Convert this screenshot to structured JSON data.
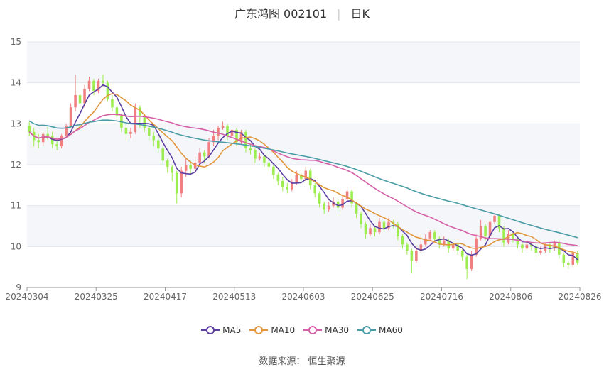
{
  "title": {
    "name": "广东鸿图 002101",
    "period": "日K"
  },
  "source_text": "数据来源： 恒生聚源",
  "chart_data": {
    "type": "candlestick",
    "y_ticks": [
      "9",
      "10",
      "11",
      "12",
      "13",
      "14",
      "15"
    ],
    "ylim": [
      9,
      15
    ],
    "x_tick_labels": [
      "20240304",
      "20240325",
      "20240417",
      "20240513",
      "20240603",
      "20240625",
      "20240716",
      "20240806",
      "20240826"
    ],
    "grid": "horizontal bands",
    "legend_position": "bottom",
    "colors": {
      "up": "#f07f80",
      "down": "#9ded50"
    },
    "candles": [
      [
        12.95,
        12.8,
        13.05,
        12.7
      ],
      [
        12.8,
        12.6,
        12.9,
        12.45
      ],
      [
        12.6,
        12.55,
        12.75,
        12.4
      ],
      [
        12.55,
        12.75,
        12.8,
        12.45
      ],
      [
        12.75,
        12.7,
        12.95,
        12.6
      ],
      [
        12.7,
        12.5,
        12.8,
        12.4
      ],
      [
        12.5,
        12.45,
        12.6,
        12.35
      ],
      [
        12.45,
        12.7,
        12.75,
        12.4
      ],
      [
        12.7,
        12.95,
        13.0,
        12.65
      ],
      [
        12.95,
        13.4,
        13.5,
        12.9
      ],
      [
        13.4,
        13.7,
        14.2,
        13.3
      ],
      [
        13.7,
        13.5,
        13.8,
        13.4
      ],
      [
        13.5,
        13.85,
        13.95,
        13.4
      ],
      [
        13.85,
        14.05,
        14.15,
        13.8
      ],
      [
        14.05,
        13.8,
        14.1,
        13.7
      ],
      [
        13.8,
        14.05,
        14.1,
        13.75
      ],
      [
        14.05,
        14.0,
        14.2,
        13.9
      ],
      [
        14.0,
        13.6,
        14.05,
        13.55
      ],
      [
        13.6,
        13.4,
        13.7,
        13.3
      ],
      [
        13.4,
        13.2,
        13.45,
        13.1
      ],
      [
        13.2,
        12.9,
        13.25,
        12.8
      ],
      [
        12.9,
        12.75,
        13.0,
        12.6
      ],
      [
        12.75,
        12.8,
        12.9,
        12.65
      ],
      [
        12.8,
        13.4,
        13.5,
        12.75
      ],
      [
        13.4,
        13.2,
        13.45,
        12.9
      ],
      [
        13.2,
        12.9,
        13.25,
        12.8
      ],
      [
        12.9,
        12.7,
        12.95,
        12.6
      ],
      [
        12.7,
        12.6,
        12.8,
        12.45
      ],
      [
        12.6,
        12.4,
        12.7,
        12.3
      ],
      [
        12.4,
        12.1,
        12.45,
        12.0
      ],
      [
        12.1,
        11.95,
        12.15,
        11.8
      ],
      [
        11.95,
        11.8,
        12.0,
        11.6
      ],
      [
        11.8,
        11.3,
        11.85,
        11.05
      ],
      [
        11.3,
        11.85,
        11.95,
        11.2
      ],
      [
        11.85,
        12.0,
        12.15,
        11.7
      ],
      [
        12.0,
        11.9,
        12.1,
        11.75
      ],
      [
        11.9,
        12.05,
        12.2,
        11.8
      ],
      [
        12.05,
        12.3,
        12.4,
        11.95
      ],
      [
        12.3,
        12.2,
        12.35,
        12.05
      ],
      [
        12.2,
        12.55,
        12.65,
        12.15
      ],
      [
        12.55,
        12.7,
        12.85,
        12.45
      ],
      [
        12.7,
        12.9,
        12.95,
        12.6
      ],
      [
        12.9,
        12.95,
        13.05,
        12.85
      ],
      [
        12.95,
        12.7,
        13.0,
        12.6
      ],
      [
        12.7,
        12.85,
        12.95,
        12.6
      ],
      [
        12.85,
        12.55,
        12.9,
        12.45
      ],
      [
        12.55,
        12.8,
        12.85,
        12.5
      ],
      [
        12.8,
        12.4,
        12.85,
        12.3
      ],
      [
        12.4,
        12.35,
        12.5,
        12.25
      ],
      [
        12.35,
        12.15,
        12.4,
        12.05
      ],
      [
        12.15,
        12.2,
        12.3,
        12.1
      ],
      [
        12.2,
        12.05,
        12.25,
        11.95
      ],
      [
        12.05,
        11.95,
        12.1,
        11.85
      ],
      [
        11.95,
        11.75,
        12.0,
        11.65
      ],
      [
        11.75,
        11.6,
        11.8,
        11.5
      ],
      [
        11.6,
        11.45,
        11.7,
        11.35
      ],
      [
        11.45,
        11.4,
        11.55,
        11.3
      ],
      [
        11.4,
        11.55,
        11.65,
        11.35
      ],
      [
        11.55,
        11.75,
        11.85,
        11.5
      ],
      [
        11.75,
        11.65,
        11.8,
        11.55
      ],
      [
        11.65,
        11.85,
        11.95,
        11.6
      ],
      [
        11.85,
        11.5,
        11.9,
        11.4
      ],
      [
        11.5,
        11.3,
        11.55,
        11.2
      ],
      [
        11.3,
        11.05,
        11.35,
        10.95
      ],
      [
        11.05,
        10.9,
        11.1,
        10.8
      ],
      [
        10.9,
        11.0,
        11.1,
        10.85
      ],
      [
        11.0,
        11.1,
        11.2,
        10.95
      ],
      [
        11.1,
        10.95,
        11.15,
        10.85
      ],
      [
        10.95,
        11.15,
        11.25,
        10.9
      ],
      [
        11.15,
        11.35,
        11.45,
        11.1
      ],
      [
        11.35,
        11.05,
        11.4,
        10.95
      ],
      [
        11.05,
        10.8,
        11.1,
        10.7
      ],
      [
        10.8,
        10.55,
        10.85,
        10.45
      ],
      [
        10.55,
        10.3,
        10.6,
        10.2
      ],
      [
        10.3,
        10.45,
        10.55,
        10.25
      ],
      [
        10.45,
        10.35,
        10.5,
        10.25
      ],
      [
        10.35,
        10.6,
        10.7,
        10.3
      ],
      [
        10.6,
        10.45,
        10.65,
        10.35
      ],
      [
        10.45,
        10.6,
        10.7,
        10.4
      ],
      [
        10.6,
        10.55,
        10.65,
        10.45
      ],
      [
        10.55,
        10.25,
        10.6,
        10.15
      ],
      [
        10.25,
        10.05,
        10.3,
        9.95
      ],
      [
        10.05,
        9.9,
        10.1,
        9.8
      ],
      [
        9.9,
        9.65,
        9.95,
        9.35
      ],
      [
        9.65,
        9.9,
        10.0,
        9.6
      ],
      [
        9.9,
        10.05,
        10.15,
        9.85
      ],
      [
        10.05,
        10.2,
        10.3,
        10.0
      ],
      [
        10.2,
        10.35,
        10.4,
        10.15
      ],
      [
        10.35,
        10.2,
        10.4,
        10.1
      ],
      [
        10.2,
        10.05,
        10.25,
        9.95
      ],
      [
        10.05,
        10.15,
        10.25,
        10.0
      ],
      [
        10.15,
        9.95,
        10.2,
        9.85
      ],
      [
        9.95,
        10.05,
        10.1,
        9.9
      ],
      [
        10.05,
        9.9,
        10.1,
        9.8
      ],
      [
        9.9,
        9.75,
        9.95,
        9.65
      ],
      [
        9.75,
        9.45,
        9.8,
        9.2
      ],
      [
        9.45,
        9.8,
        9.9,
        9.4
      ],
      [
        9.8,
        10.2,
        10.3,
        9.75
      ],
      [
        10.2,
        10.5,
        10.65,
        10.15
      ],
      [
        10.5,
        10.25,
        10.55,
        10.15
      ],
      [
        10.25,
        10.6,
        10.7,
        10.2
      ],
      [
        10.6,
        10.75,
        10.8,
        10.55
      ],
      [
        10.75,
        10.45,
        10.8,
        10.35
      ],
      [
        10.45,
        10.1,
        10.5,
        10.0
      ],
      [
        10.1,
        10.3,
        10.4,
        10.05
      ],
      [
        10.3,
        10.2,
        10.35,
        10.1
      ],
      [
        10.2,
        10.05,
        10.25,
        9.95
      ],
      [
        10.05,
        9.95,
        10.1,
        9.85
      ],
      [
        9.95,
        10.05,
        10.1,
        9.9
      ],
      [
        10.05,
        10.0,
        10.1,
        9.9
      ],
      [
        10.0,
        9.85,
        10.05,
        9.75
      ],
      [
        9.85,
        9.9,
        10.0,
        9.8
      ],
      [
        9.9,
        10.05,
        10.1,
        9.85
      ],
      [
        10.05,
        9.95,
        10.1,
        9.85
      ],
      [
        9.95,
        10.1,
        10.15,
        9.9
      ],
      [
        10.1,
        9.8,
        10.15,
        9.7
      ],
      [
        9.8,
        9.6,
        9.85,
        9.5
      ],
      [
        9.6,
        9.55,
        9.65,
        9.45
      ],
      [
        9.55,
        9.85,
        9.9,
        9.5
      ],
      [
        9.85,
        9.6,
        9.9,
        9.55
      ]
    ],
    "series": [
      {
        "name": "MA5",
        "color": "#5b3fa0"
      },
      {
        "name": "MA10",
        "color": "#e0963b"
      },
      {
        "name": "MA30",
        "color": "#d660a8"
      },
      {
        "name": "MA60",
        "color": "#4a9ca6"
      }
    ]
  }
}
